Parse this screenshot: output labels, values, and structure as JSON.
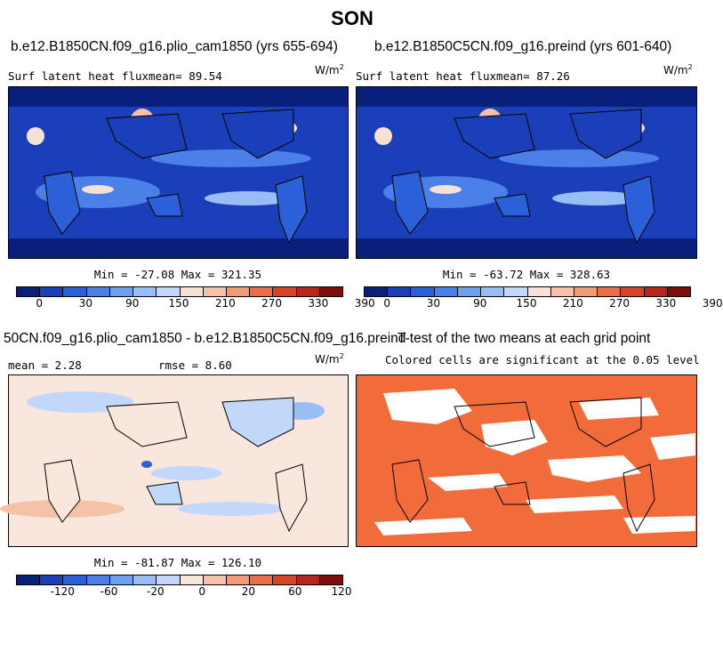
{
  "figure": {
    "title": "SON",
    "panels": [
      {
        "title": "b.e12.B1850CN.f09_g16.plio_cam1850 (yrs 655-694)",
        "left_label": "Surf latent heat fluxmean=  89.54",
        "units": "W/m",
        "units_sup": "2",
        "minmax": "Min = -27.08 Max = 321.35",
        "colorbar_ticks": [
          "0",
          "30",
          "90",
          "150",
          "210",
          "270",
          "330",
          "390"
        ]
      },
      {
        "title": "b.e12.B1850C5CN.f09_g16.preind (yrs 601-640)",
        "left_label": "Surf latent heat fluxmean=  87.26",
        "units": "W/m",
        "units_sup": "2",
        "minmax": "Min = -63.72 Max = 328.63",
        "colorbar_ticks": [
          "0",
          "30",
          "90",
          "150",
          "210",
          "270",
          "330",
          "390"
        ]
      },
      {
        "title": "50CN.f09_g16.plio_cam1850 - b.e12.B1850C5CN.f09_g16.preind",
        "mean_label": "mean =   2.28",
        "rmse_label": "rmse =   8.60",
        "units": "W/m",
        "units_sup": "2",
        "minmax": "Min = -81.87 Max = 126.10",
        "colorbar_ticks": [
          "-120",
          "-60",
          "-20",
          "0",
          "20",
          "60",
          "120"
        ]
      },
      {
        "title": "T-test of the two means at each grid point",
        "subtitle": "Colored cells are significant at the 0.05 level"
      }
    ]
  },
  "colors": {
    "abs_scale": [
      "#08207a",
      "#1a3fb8",
      "#2c60d8",
      "#4a80e8",
      "#6f9ff0",
      "#98bef5",
      "#c2d8fa",
      "#f7e1d4",
      "#f5c2a8",
      "#f29a78",
      "#ea6e4c",
      "#d74527",
      "#b7261a",
      "#7d0e0e"
    ],
    "diff_scale": [
      "#08207a",
      "#1a3fb8",
      "#2c60d8",
      "#4a80e8",
      "#6f9ff0",
      "#98bef5",
      "#c2d8fa",
      "#f9e6dc",
      "#f5c2a8",
      "#f29a78",
      "#ea6e4c",
      "#d74527",
      "#b7261a",
      "#7d0e0e"
    ],
    "ttest": "#f26b3a"
  }
}
